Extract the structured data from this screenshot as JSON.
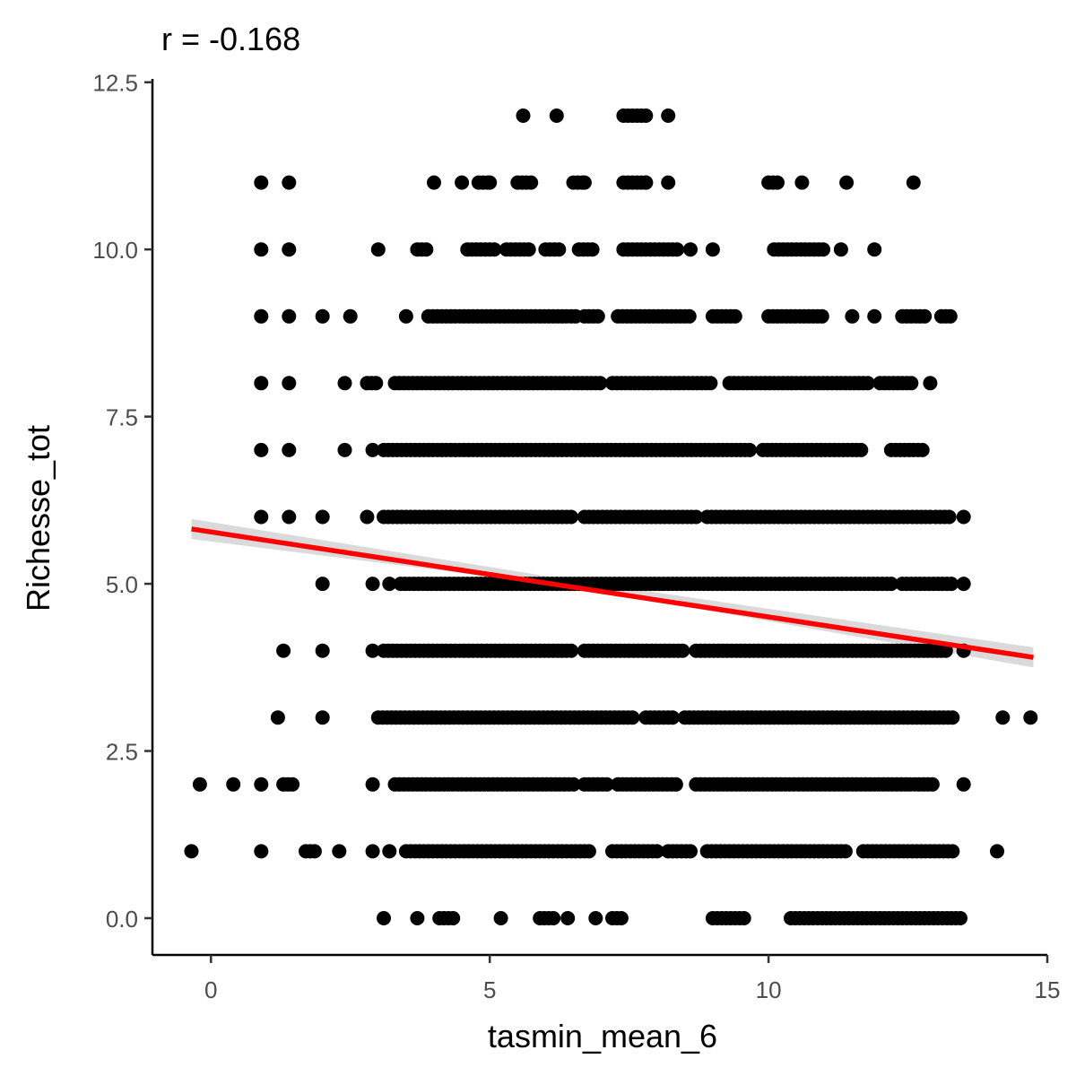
{
  "title": "r = -0.168",
  "chart_data": {
    "type": "scatter",
    "title": "r = -0.168",
    "xlabel": "tasmin_mean_6",
    "ylabel": "Richesse_tot",
    "xlim": [
      -1.05,
      15.0
    ],
    "ylim": [
      -0.55,
      12.55
    ],
    "xticks": [
      0,
      5,
      10,
      15
    ],
    "xtick_labels": [
      "0",
      "5",
      "10",
      "15"
    ],
    "yticks": [
      0,
      2.5,
      5,
      7.5,
      10,
      12.5
    ],
    "ytick_labels": [
      "0.0",
      "2.5",
      "5.0",
      "7.5",
      "10.0",
      "12.5"
    ],
    "grid": false,
    "legend": "none",
    "point_color": "#000000",
    "trend_color": "#ff0000",
    "band_color": "#d3d3d3",
    "trend_line": {
      "x": [
        -0.35,
        14.75
      ],
      "y": [
        5.82,
        3.9
      ]
    },
    "confidence_band": {
      "x": [
        -0.35,
        6.5,
        14.75
      ],
      "upper": [
        5.97,
        5.05,
        4.05
      ],
      "lower": [
        5.67,
        4.95,
        3.75
      ]
    },
    "rows": [
      {
        "y": 12,
        "points": [
          5.6,
          6.2
        ],
        "runs": [
          [
            7.4,
            7.8
          ]
        ],
        "extra": [
          8.2
        ]
      },
      {
        "y": 11,
        "points": [
          0.9,
          1.4,
          4.0,
          4.5,
          5.0,
          6.7,
          7.8,
          8.2,
          10.6,
          11.4,
          12.6
        ],
        "runs": [
          [
            4.8,
            5.0
          ],
          [
            5.5,
            5.8
          ],
          [
            6.5,
            6.7
          ],
          [
            7.4,
            7.8
          ],
          [
            10.0,
            10.2
          ]
        ],
        "extra": []
      },
      {
        "y": 10,
        "points": [
          0.9,
          1.4,
          3.0,
          8.6,
          9.0,
          11.3,
          11.9
        ],
        "runs": [
          [
            3.7,
            3.9
          ],
          [
            4.6,
            5.1
          ],
          [
            5.3,
            5.7
          ],
          [
            6.0,
            6.3
          ],
          [
            6.6,
            6.9
          ],
          [
            7.4,
            8.4
          ],
          [
            10.1,
            11.0
          ]
        ],
        "extra": []
      },
      {
        "y": 9,
        "points": [
          0.9,
          1.4,
          2.0,
          2.5,
          3.5,
          11.5,
          11.9
        ],
        "runs": [
          [
            3.9,
            6.6
          ],
          [
            6.7,
            7.0
          ],
          [
            7.3,
            8.6
          ],
          [
            9.0,
            9.4
          ],
          [
            10.0,
            11.0
          ],
          [
            12.4,
            12.8
          ],
          [
            13.1,
            13.3
          ]
        ],
        "extra": []
      },
      {
        "y": 8,
        "points": [
          0.9,
          1.4,
          2.4,
          12.9
        ],
        "runs": [
          [
            2.8,
            3.0
          ],
          [
            3.3,
            7.0
          ],
          [
            7.2,
            9.0
          ],
          [
            9.3,
            11.8
          ],
          [
            12.0,
            12.6
          ]
        ],
        "extra": []
      },
      {
        "y": 7,
        "points": [
          0.9,
          1.4,
          2.4,
          2.9
        ],
        "runs": [
          [
            3.1,
            9.7
          ],
          [
            9.9,
            11.7
          ],
          [
            12.2,
            12.8
          ]
        ],
        "extra": []
      },
      {
        "y": 6,
        "points": [
          0.9,
          1.4,
          2.0,
          2.8,
          13.5
        ],
        "runs": [
          [
            3.1,
            6.5
          ],
          [
            6.7,
            8.7
          ],
          [
            8.9,
            12.9
          ],
          [
            13.0,
            13.3
          ]
        ],
        "extra": []
      },
      {
        "y": 5,
        "points": [
          2.0,
          2.9,
          3.2,
          13.5
        ],
        "runs": [
          [
            3.4,
            12.2
          ],
          [
            12.4,
            13.3
          ]
        ],
        "extra": []
      },
      {
        "y": 4,
        "points": [
          1.3,
          2.0,
          2.9,
          13.5
        ],
        "runs": [
          [
            3.1,
            6.5
          ],
          [
            6.7,
            8.5
          ],
          [
            8.7,
            13.2
          ]
        ],
        "extra": []
      },
      {
        "y": 3,
        "points": [
          1.2,
          2.0,
          14.2,
          14.7
        ],
        "runs": [
          [
            3.0,
            7.6
          ],
          [
            7.8,
            8.3
          ],
          [
            8.5,
            13.3
          ]
        ],
        "extra": []
      },
      {
        "y": 2,
        "points": [
          -0.2,
          0.4,
          0.9,
          2.9,
          13.5
        ],
        "runs": [
          [
            1.3,
            1.5
          ],
          [
            3.3,
            6.5
          ],
          [
            6.7,
            7.1
          ],
          [
            7.3,
            8.4
          ],
          [
            8.7,
            13.0
          ]
        ],
        "extra": []
      },
      {
        "y": 1,
        "points": [
          -0.35,
          0.9,
          2.3,
          2.9,
          3.2,
          14.1
        ],
        "runs": [
          [
            1.7,
            1.9
          ],
          [
            3.5,
            6.8
          ],
          [
            7.2,
            8.0
          ],
          [
            8.2,
            8.6
          ],
          [
            8.9,
            11.4
          ],
          [
            11.7,
            13.3
          ]
        ],
        "extra": []
      },
      {
        "y": 0,
        "points": [
          3.1,
          3.7,
          5.2,
          6.4,
          6.9
        ],
        "runs": [
          [
            4.1,
            4.4
          ],
          [
            5.9,
            6.2
          ],
          [
            7.2,
            7.4
          ],
          [
            9.0,
            9.6
          ],
          [
            10.4,
            13.5
          ]
        ],
        "extra": []
      }
    ]
  }
}
